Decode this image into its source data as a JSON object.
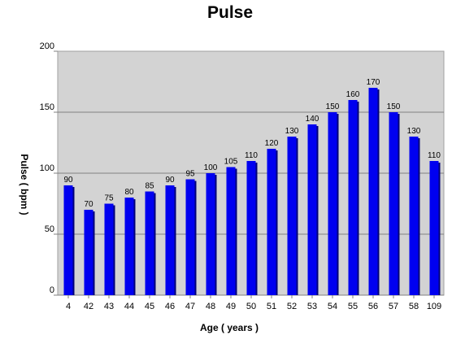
{
  "chart_data": {
    "type": "bar",
    "title": "Pulse",
    "xlabel": "Age ( years )",
    "ylabel": "Pulse ( bpm )",
    "ylim": [
      0,
      200
    ],
    "yticks": [
      0,
      50,
      100,
      150,
      200
    ],
    "grid": true,
    "colors": {
      "plot_background": "#d3d3d3",
      "bar": "#0000f0",
      "bar_shadow": "#00007a",
      "gridline": "#808080"
    },
    "categories": [
      "4",
      "42",
      "43",
      "44",
      "45",
      "46",
      "47",
      "48",
      "49",
      "50",
      "51",
      "52",
      "53",
      "54",
      "55",
      "56",
      "57",
      "58",
      "109"
    ],
    "values": [
      90,
      70,
      75,
      80,
      85,
      90,
      95,
      100,
      105,
      110,
      120,
      130,
      140,
      150,
      160,
      170,
      150,
      130,
      110
    ]
  }
}
